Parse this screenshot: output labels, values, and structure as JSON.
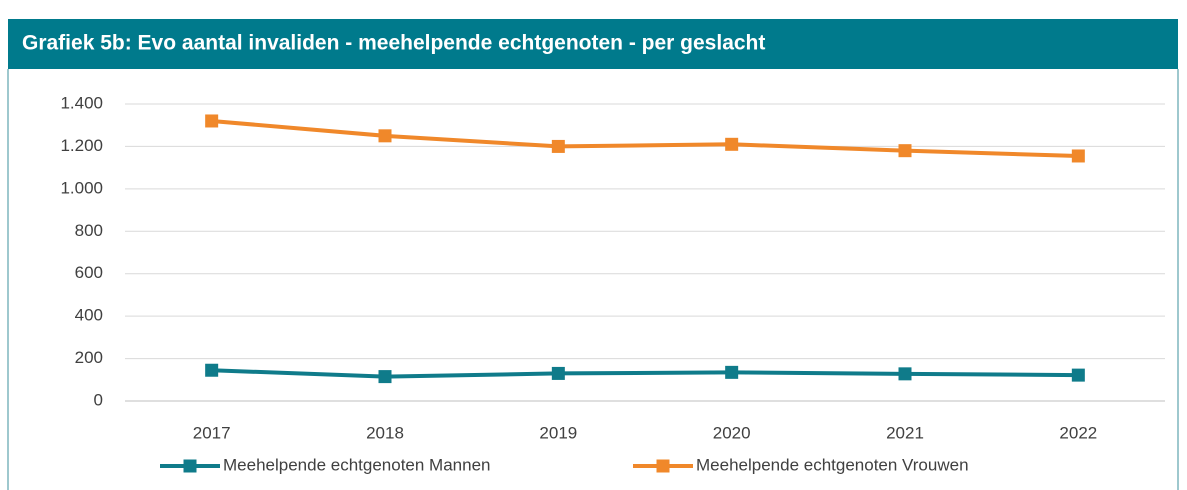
{
  "chart_data": {
    "type": "line",
    "title": "Grafiek 5b: Evo aantal invaliden - meehelpende echtgenoten - per geslacht",
    "categories": [
      "2017",
      "2018",
      "2019",
      "2020",
      "2021",
      "2022"
    ],
    "series": [
      {
        "name": "Meehelpende echtgenoten Mannen",
        "color": "#0f7b8a",
        "values": [
          145,
          115,
          130,
          135,
          128,
          122
        ]
      },
      {
        "name": "Meehelpende echtgenoten Vrouwen",
        "color": "#f0882a",
        "values": [
          1320,
          1250,
          1200,
          1210,
          1180,
          1155
        ]
      }
    ],
    "ylim": [
      0,
      1400
    ],
    "yticks": [
      0,
      200,
      400,
      600,
      800,
      {
        "value": 1000,
        "label": "1.000"
      },
      {
        "value": 1200,
        "label": "1.200"
      },
      {
        "value": 1400,
        "label": "1.400"
      }
    ],
    "grid": true,
    "legend": "bottom"
  }
}
